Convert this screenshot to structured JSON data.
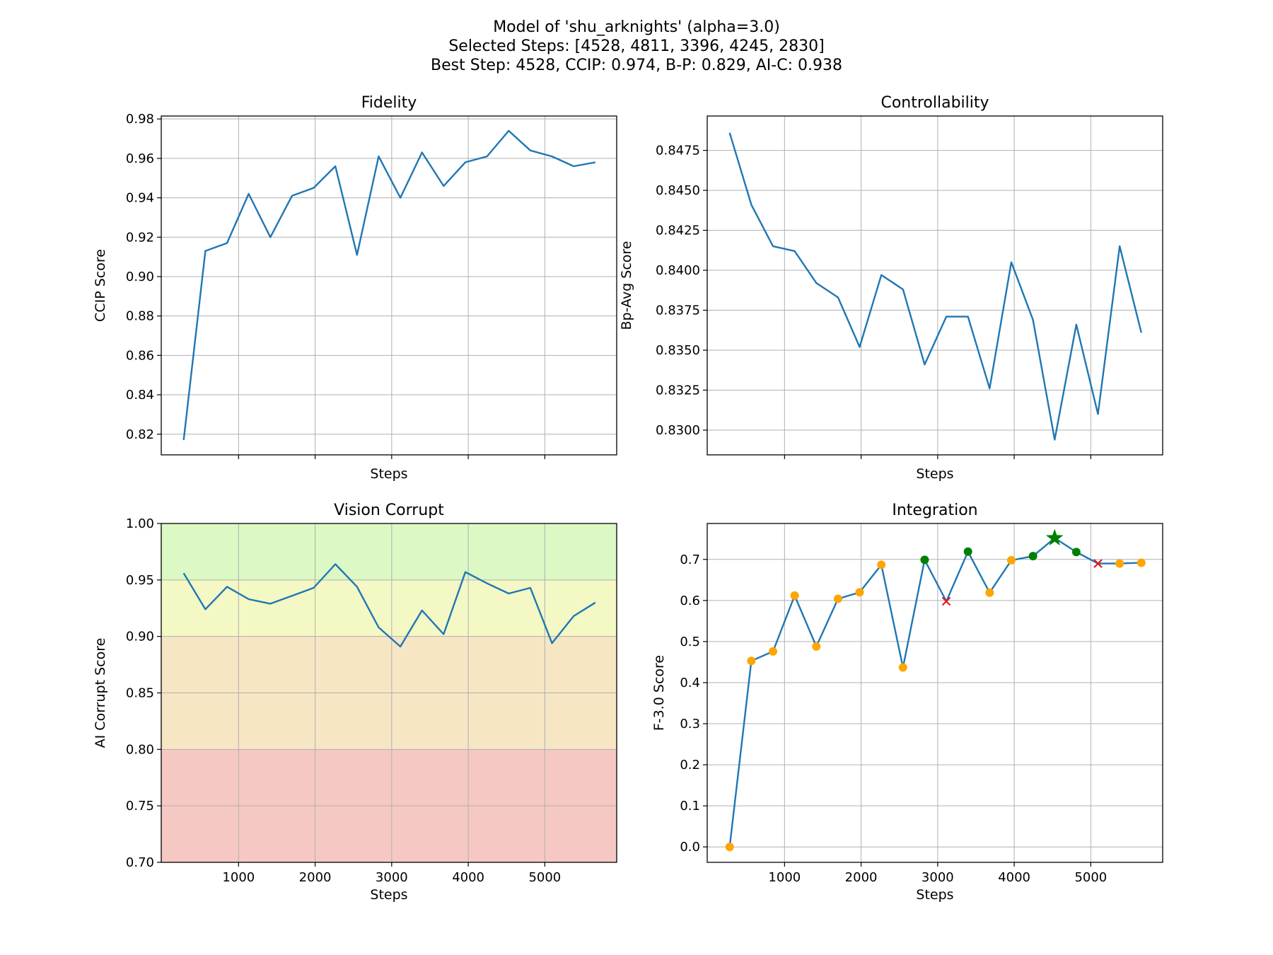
{
  "figure": {
    "title_lines": [
      "Model of 'shu_arknights' (alpha=3.0)",
      "Selected Steps: [4528, 4811, 3396, 4245, 2830]",
      "Best Step: 4528, CCIP: 0.974, B-P: 0.829, AI-C: 0.938"
    ]
  },
  "colors": {
    "line": "#1f77b4",
    "marker_default": "#ffa500",
    "marker_selected": "#008000",
    "marker_excluded": "#e8141c",
    "marker_best": "#008000",
    "band_good": "#dcf8c4",
    "band_ok": "#f4f8c4",
    "band_warn": "#f6e6c4",
    "band_bad": "#f6c8c4"
  },
  "chart_data": [
    {
      "id": "fidelity",
      "type": "line",
      "title": "Fidelity",
      "xlabel": "Steps",
      "ylabel": "CCIP Score",
      "xlim": [
        -10,
        5939
      ],
      "ylim": [
        0.8095,
        0.9815
      ],
      "yticks": [
        0.82,
        0.84,
        0.86,
        0.88,
        0.9,
        0.92,
        0.94,
        0.96,
        0.98
      ],
      "ytick_labels": [
        "0.82",
        "0.84",
        "0.86",
        "0.88",
        "0.90",
        "0.92",
        "0.94",
        "0.96",
        "0.98"
      ],
      "xticks": [
        1000,
        2000,
        3000,
        4000,
        5000
      ],
      "xtick_labels_shown": false,
      "grid": true,
      "x": [
        283,
        566,
        849,
        1132,
        1415,
        1698,
        1981,
        2264,
        2547,
        2830,
        3113,
        3396,
        3679,
        3962,
        4245,
        4528,
        4811,
        5094,
        5377,
        5660
      ],
      "series": [
        {
          "values": [
            0.817,
            0.913,
            0.917,
            0.942,
            0.92,
            0.941,
            0.945,
            0.956,
            0.911,
            0.961,
            0.94,
            0.963,
            0.946,
            0.958,
            0.961,
            0.974,
            0.964,
            0.961,
            0.956,
            0.958
          ]
        }
      ]
    },
    {
      "id": "controllability",
      "type": "line",
      "title": "Controllability",
      "xlabel": "Steps",
      "ylabel": "Bp-Avg Score",
      "xlim": [
        -10,
        5939
      ],
      "ylim": [
        0.82845,
        0.84965
      ],
      "yticks": [
        0.83,
        0.8325,
        0.835,
        0.8375,
        0.84,
        0.8425,
        0.845,
        0.8475
      ],
      "ytick_labels": [
        "0.8300",
        "0.8325",
        "0.8350",
        "0.8375",
        "0.8400",
        "0.8425",
        "0.8450",
        "0.8475"
      ],
      "xticks": [
        1000,
        2000,
        3000,
        4000,
        5000
      ],
      "xtick_labels_shown": false,
      "grid": true,
      "x": [
        283,
        566,
        849,
        1132,
        1415,
        1698,
        1981,
        2264,
        2547,
        2830,
        3113,
        3396,
        3679,
        3962,
        4245,
        4528,
        4811,
        5094,
        5377,
        5660
      ],
      "series": [
        {
          "values": [
            0.8486,
            0.8441,
            0.8415,
            0.8412,
            0.8392,
            0.8383,
            0.8352,
            0.8397,
            0.8388,
            0.8341,
            0.8371,
            0.8371,
            0.8326,
            0.8405,
            0.8369,
            0.8294,
            0.8366,
            0.831,
            0.8415,
            0.8361
          ]
        }
      ]
    },
    {
      "id": "vision-corrupt",
      "type": "line",
      "title": "Vision Corrupt",
      "xlabel": "Steps",
      "ylabel": "AI Corrupt Score",
      "xlim": [
        -10,
        5939
      ],
      "ylim": [
        0.7,
        1.0
      ],
      "yticks": [
        0.7,
        0.75,
        0.8,
        0.85,
        0.9,
        0.95,
        1.0
      ],
      "ytick_labels": [
        "0.70",
        "0.75",
        "0.80",
        "0.85",
        "0.90",
        "0.95",
        "1.00"
      ],
      "xticks": [
        1000,
        2000,
        3000,
        4000,
        5000
      ],
      "xtick_labels": [
        "1000",
        "2000",
        "3000",
        "4000",
        "5000"
      ],
      "xtick_labels_shown": true,
      "grid": true,
      "bands": [
        {
          "from": 0.95,
          "to": 1.0,
          "color": "band_good"
        },
        {
          "from": 0.9,
          "to": 0.95,
          "color": "band_ok"
        },
        {
          "from": 0.8,
          "to": 0.9,
          "color": "band_warn"
        },
        {
          "from": 0.7,
          "to": 0.8,
          "color": "band_bad"
        }
      ],
      "x": [
        283,
        566,
        849,
        1132,
        1415,
        1698,
        1981,
        2264,
        2547,
        2830,
        3113,
        3396,
        3679,
        3962,
        4245,
        4528,
        4811,
        5094,
        5377,
        5660
      ],
      "series": [
        {
          "values": [
            0.956,
            0.924,
            0.944,
            0.933,
            0.929,
            0.936,
            0.943,
            0.964,
            0.944,
            0.908,
            0.891,
            0.923,
            0.902,
            0.957,
            0.947,
            0.938,
            0.943,
            0.894,
            0.918,
            0.93
          ]
        }
      ]
    },
    {
      "id": "integration",
      "type": "line",
      "title": "Integration",
      "xlabel": "Steps",
      "ylabel": "F-3.0 Score",
      "xlim": [
        -10,
        5939
      ],
      "ylim": [
        -0.0375,
        0.7875
      ],
      "yticks": [
        0.0,
        0.1,
        0.2,
        0.3,
        0.4,
        0.5,
        0.6,
        0.7
      ],
      "ytick_labels": [
        "0.0",
        "0.1",
        "0.2",
        "0.3",
        "0.4",
        "0.5",
        "0.6",
        "0.7"
      ],
      "xticks": [
        1000,
        2000,
        3000,
        4000,
        5000
      ],
      "xtick_labels": [
        "1000",
        "2000",
        "3000",
        "4000",
        "5000"
      ],
      "xtick_labels_shown": true,
      "grid": true,
      "x": [
        283,
        566,
        849,
        1132,
        1415,
        1698,
        1981,
        2264,
        2547,
        2830,
        3113,
        3396,
        3679,
        3962,
        4245,
        4528,
        4811,
        5094,
        5377,
        5660
      ],
      "series": [
        {
          "values": [
            0.0,
            0.453,
            0.476,
            0.612,
            0.488,
            0.604,
            0.62,
            0.687,
            0.437,
            0.699,
            0.598,
            0.719,
            0.619,
            0.698,
            0.708,
            0.752,
            0.718,
            0.69,
            0.69,
            0.692
          ],
          "markers": [
            "default",
            "default",
            "default",
            "default",
            "default",
            "default",
            "default",
            "default",
            "default",
            "selected",
            "excluded",
            "selected",
            "default",
            "default",
            "selected",
            "best",
            "selected",
            "excluded",
            "default",
            "default"
          ]
        }
      ]
    }
  ]
}
